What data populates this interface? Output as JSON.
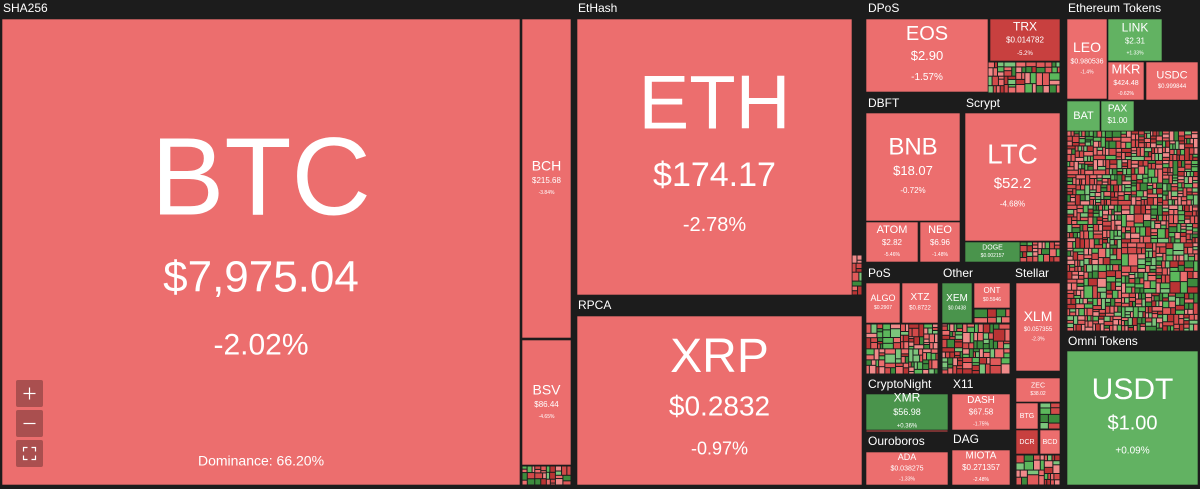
{
  "groups": [
    {
      "label": "SHA256",
      "tiles": [
        {
          "symbol": "BTC",
          "price": "$7,975.04",
          "change": "-2.02%"
        },
        {
          "symbol": "BCH",
          "price": "$215.68",
          "change": "-3.84%"
        },
        {
          "symbol": "BSV",
          "price": "$86.44",
          "change": "-4.65%"
        }
      ]
    },
    {
      "label": "EtHash",
      "tiles": [
        {
          "symbol": "ETH",
          "price": "$174.17",
          "change": "-2.78%"
        }
      ]
    },
    {
      "label": "RPCA",
      "tiles": [
        {
          "symbol": "XRP",
          "price": "$0.2832",
          "change": "-0.97%"
        }
      ]
    },
    {
      "label": "DPoS",
      "tiles": [
        {
          "symbol": "EOS",
          "price": "$2.90",
          "change": "-1.57%"
        },
        {
          "symbol": "TRX",
          "price": "$0.014782",
          "change": "-5.2%"
        }
      ]
    },
    {
      "label": "DBFT",
      "tiles": [
        {
          "symbol": "BNB",
          "price": "$18.07",
          "change": "-0.72%"
        },
        {
          "symbol": "ATOM",
          "price": "$2.82",
          "change": "-5.46%"
        },
        {
          "symbol": "NEO",
          "price": "$6.96",
          "change": "-1.48%"
        }
      ]
    },
    {
      "label": "Scrypt",
      "tiles": [
        {
          "symbol": "LTC",
          "price": "$52.2",
          "change": "-4.68%"
        },
        {
          "symbol": "DOGE",
          "price": "$0.002157"
        }
      ]
    },
    {
      "label": "PoS",
      "tiles": [
        {
          "symbol": "ALGO",
          "price": "$0.2907"
        },
        {
          "symbol": "XTZ",
          "price": "$0.8722"
        }
      ]
    },
    {
      "label": "Other",
      "tiles": [
        {
          "symbol": "XEM",
          "price": "$0.0438"
        },
        {
          "symbol": "ONT",
          "price": "$0.5946"
        }
      ]
    },
    {
      "label": "Stellar",
      "tiles": [
        {
          "symbol": "XLM",
          "price": "$0.057355",
          "change": "-2.3%"
        }
      ]
    },
    {
      "label": "CryptoNight",
      "tiles": [
        {
          "symbol": "XMR",
          "price": "$56.98",
          "change": "+0.36%"
        }
      ]
    },
    {
      "label": "X11",
      "tiles": [
        {
          "symbol": "DASH",
          "price": "$67.58",
          "change": "-1.75%"
        }
      ]
    },
    {
      "label": "Ouroboros",
      "tiles": [
        {
          "symbol": "ADA",
          "price": "$0.038275",
          "change": "-1.33%"
        }
      ]
    },
    {
      "label": "DAG",
      "tiles": [
        {
          "symbol": "MIOTA",
          "price": "$0.271357",
          "change": "-2.48%"
        }
      ]
    },
    {
      "label": "Ethereum Tokens",
      "tiles": [
        {
          "symbol": "LEO",
          "price": "$0.980536",
          "change": "-1.4%"
        },
        {
          "symbol": "LINK",
          "price": "$2.31",
          "change": "+1.33%"
        },
        {
          "symbol": "MKR",
          "price": "$424.48",
          "change": "-0.62%"
        },
        {
          "symbol": "USDC",
          "price": "$0.999844"
        },
        {
          "symbol": "BAT"
        },
        {
          "symbol": "PAX",
          "price": "$1.00"
        }
      ]
    },
    {
      "label": "Omni Tokens",
      "tiles": [
        {
          "symbol": "USDT",
          "price": "$1.00",
          "change": "+0.09%"
        }
      ]
    },
    {
      "tiles": [
        {
          "symbol": "ZEC",
          "price": "$38.02"
        },
        {
          "symbol": "BTG"
        },
        {
          "symbol": "DCR"
        },
        {
          "symbol": "BCD"
        }
      ]
    }
  ],
  "dominance": "Dominance: 66.20%"
}
